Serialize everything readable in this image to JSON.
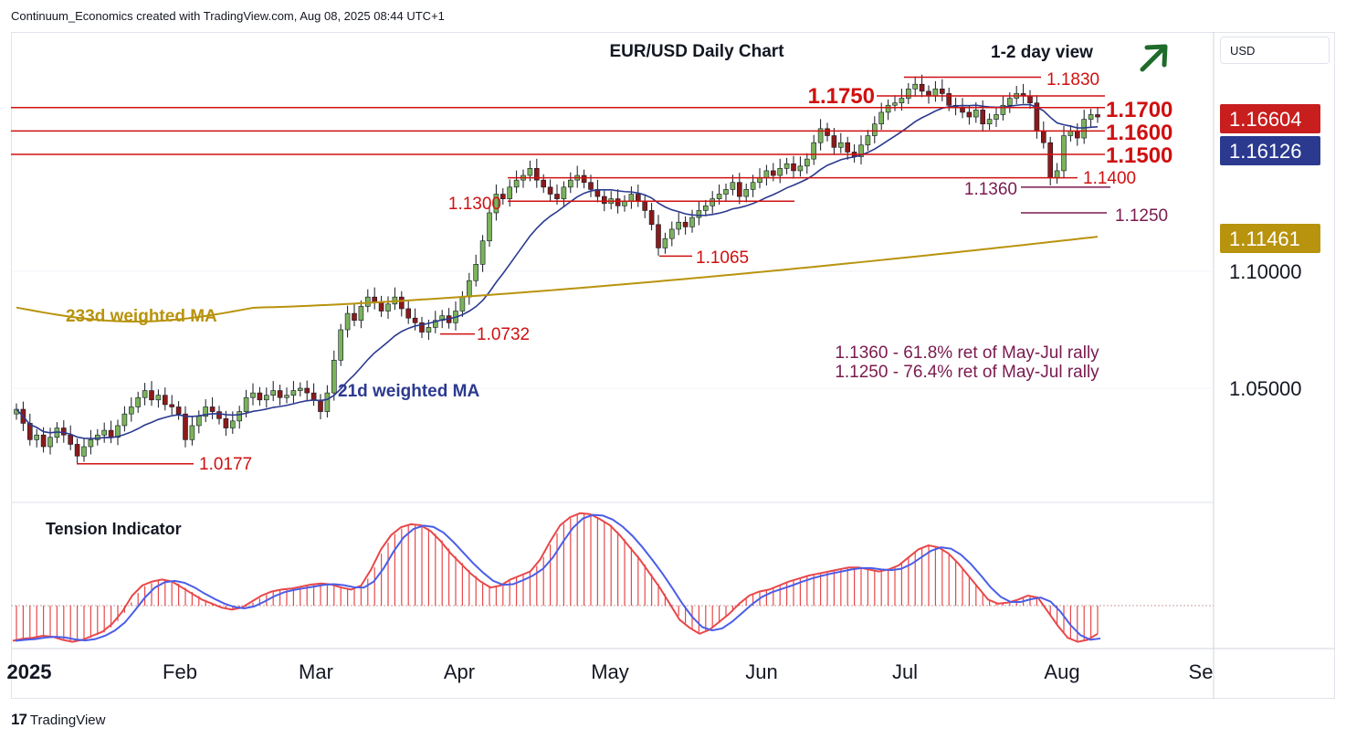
{
  "header": {
    "attribution": "Continuum_Economics created with TradingView.com, Aug 08, 2025 08:44 UTC+1"
  },
  "footer": {
    "brand": "TradingView",
    "logo_glyph": "17"
  },
  "currency_button": "USD",
  "price_badges": [
    {
      "value": "1.16604",
      "color": "#c81e1e"
    },
    {
      "value": "1.16126",
      "color": "#2b3a8f"
    },
    {
      "value": "1.11461",
      "color": "#b8930d"
    }
  ],
  "chart_data": {
    "type": "candlestick",
    "title": "EUR/USD Daily Chart",
    "view_label": "1-2 day view",
    "view_direction": "up",
    "x_ticks": [
      "2025",
      "Feb",
      "Mar",
      "Apr",
      "May",
      "Jun",
      "Jul",
      "Aug",
      "Se"
    ],
    "y_ticks": [
      "1.10000",
      "1.05000"
    ],
    "ylim": [
      1.005,
      1.19
    ],
    "levels": [
      {
        "label": "1.1830",
        "value": 1.183,
        "color": "#d01010"
      },
      {
        "label": "1.1750",
        "value": 1.175,
        "color": "#d01010"
      },
      {
        "label": "1.1700",
        "value": 1.17,
        "color": "#d01010"
      },
      {
        "label": "1.1600",
        "value": 1.16,
        "color": "#d01010"
      },
      {
        "label": "1.1500",
        "value": 1.15,
        "color": "#d01010"
      },
      {
        "label": "1.1400",
        "value": 1.14,
        "color": "#d01010"
      },
      {
        "label": "1.1360",
        "value": 1.136,
        "color": "#7a1a4f"
      },
      {
        "label": "1.1300",
        "value": 1.13,
        "color": "#d01010"
      },
      {
        "label": "1.1250",
        "value": 1.125,
        "color": "#7a1a4f"
      },
      {
        "label": "1.1065",
        "value": 1.1065,
        "color": "#d01010"
      },
      {
        "label": "1.0732",
        "value": 1.0732,
        "color": "#d01010"
      },
      {
        "label": "1.0177",
        "value": 1.0177,
        "color": "#d01010"
      }
    ],
    "annotations": [
      "1.1360 - 61.8% ret of May-Jul rally",
      "1.1250 - 76.4% ret of May-Jul rally"
    ],
    "series": [
      {
        "name": "233d weighted MA",
        "color": "#b8930d"
      },
      {
        "name": "21d weighted MA",
        "color": "#2b3a8f"
      }
    ],
    "closes": [
      1.041,
      1.035,
      1.028,
      1.03,
      1.025,
      1.029,
      1.033,
      1.03,
      1.026,
      1.021,
      1.025,
      1.028,
      1.03,
      1.032,
      1.029,
      1.034,
      1.039,
      1.042,
      1.046,
      1.049,
      1.045,
      1.047,
      1.043,
      1.042,
      1.039,
      1.028,
      1.034,
      1.038,
      1.042,
      1.04,
      1.037,
      1.033,
      1.036,
      1.04,
      1.046,
      1.048,
      1.045,
      1.047,
      1.049,
      1.046,
      1.047,
      1.049,
      1.05,
      1.048,
      1.045,
      1.04,
      1.048,
      1.062,
      1.075,
      1.082,
      1.079,
      1.085,
      1.089,
      1.087,
      1.083,
      1.086,
      1.089,
      1.084,
      1.08,
      1.078,
      1.074,
      1.076,
      1.079,
      1.081,
      1.078,
      1.083,
      1.089,
      1.096,
      1.103,
      1.113,
      1.125,
      1.133,
      1.131,
      1.136,
      1.139,
      1.141,
      1.144,
      1.139,
      1.136,
      1.133,
      1.131,
      1.136,
      1.139,
      1.141,
      1.138,
      1.135,
      1.132,
      1.129,
      1.131,
      1.128,
      1.13,
      1.133,
      1.13,
      1.126,
      1.12,
      1.11,
      1.114,
      1.118,
      1.121,
      1.119,
      1.123,
      1.126,
      1.128,
      1.131,
      1.133,
      1.135,
      1.138,
      1.132,
      1.135,
      1.138,
      1.14,
      1.143,
      1.141,
      1.144,
      1.146,
      1.143,
      1.145,
      1.148,
      1.155,
      1.161,
      1.158,
      1.153,
      1.155,
      1.151,
      1.149,
      1.154,
      1.158,
      1.163,
      1.168,
      1.171,
      1.172,
      1.174,
      1.178,
      1.18,
      1.177,
      1.175,
      1.178,
      1.176,
      1.171,
      1.17,
      1.168,
      1.166,
      1.169,
      1.163,
      1.165,
      1.167,
      1.171,
      1.174,
      1.176,
      1.175,
      1.172,
      1.16,
      1.155,
      1.14,
      1.143,
      1.158,
      1.16,
      1.157,
      1.165,
      1.167,
      1.166
    ],
    "tension_indicator": {
      "name": "Tension Indicator",
      "values": [
        -0.35,
        -0.33,
        -0.32,
        -0.3,
        -0.31,
        -0.34,
        -0.36,
        -0.34,
        -0.3,
        -0.26,
        -0.18,
        -0.06,
        0.1,
        0.2,
        0.24,
        0.26,
        0.24,
        0.18,
        0.12,
        0.06,
        0.02,
        -0.02,
        -0.04,
        -0.02,
        0.04,
        0.1,
        0.14,
        0.16,
        0.17,
        0.19,
        0.21,
        0.22,
        0.21,
        0.18,
        0.16,
        0.2,
        0.36,
        0.56,
        0.7,
        0.78,
        0.81,
        0.8,
        0.74,
        0.64,
        0.52,
        0.42,
        0.32,
        0.24,
        0.18,
        0.2,
        0.26,
        0.3,
        0.34,
        0.46,
        0.64,
        0.8,
        0.88,
        0.92,
        0.91,
        0.86,
        0.8,
        0.7,
        0.58,
        0.46,
        0.32,
        0.18,
        0.02,
        -0.14,
        -0.22,
        -0.28,
        -0.24,
        -0.16,
        -0.08,
        0.02,
        0.1,
        0.14,
        0.16,
        0.2,
        0.24,
        0.27,
        0.3,
        0.32,
        0.34,
        0.36,
        0.38,
        0.38,
        0.36,
        0.34,
        0.36,
        0.4,
        0.48,
        0.56,
        0.6,
        0.58,
        0.52,
        0.42,
        0.3,
        0.18,
        0.06,
        0.02,
        0.03,
        0.06,
        0.1,
        0.08,
        -0.06,
        -0.2,
        -0.32,
        -0.36,
        -0.34,
        -0.28
      ]
    }
  }
}
